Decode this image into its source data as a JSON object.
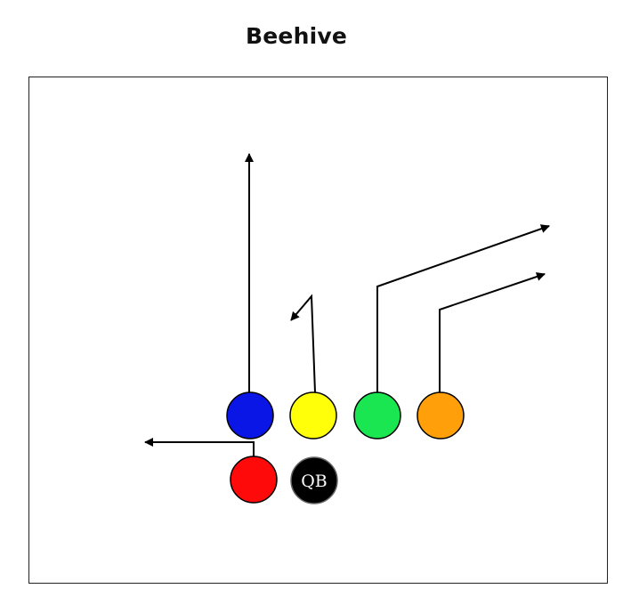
{
  "play": {
    "title": "Beehive",
    "qb_label": "QB"
  },
  "players": [
    {
      "id": "blue",
      "color": "#0a16e6",
      "route": "go"
    },
    {
      "id": "yellow",
      "color": "#ffff0a",
      "route": "stick-out"
    },
    {
      "id": "green",
      "color": "#19e650",
      "route": "corner"
    },
    {
      "id": "orange",
      "color": "#ffa00a",
      "route": "corner"
    },
    {
      "id": "red",
      "color": "#ff0a0a",
      "route": "flat"
    },
    {
      "id": "qb",
      "color": "#000000",
      "route": "none"
    }
  ]
}
